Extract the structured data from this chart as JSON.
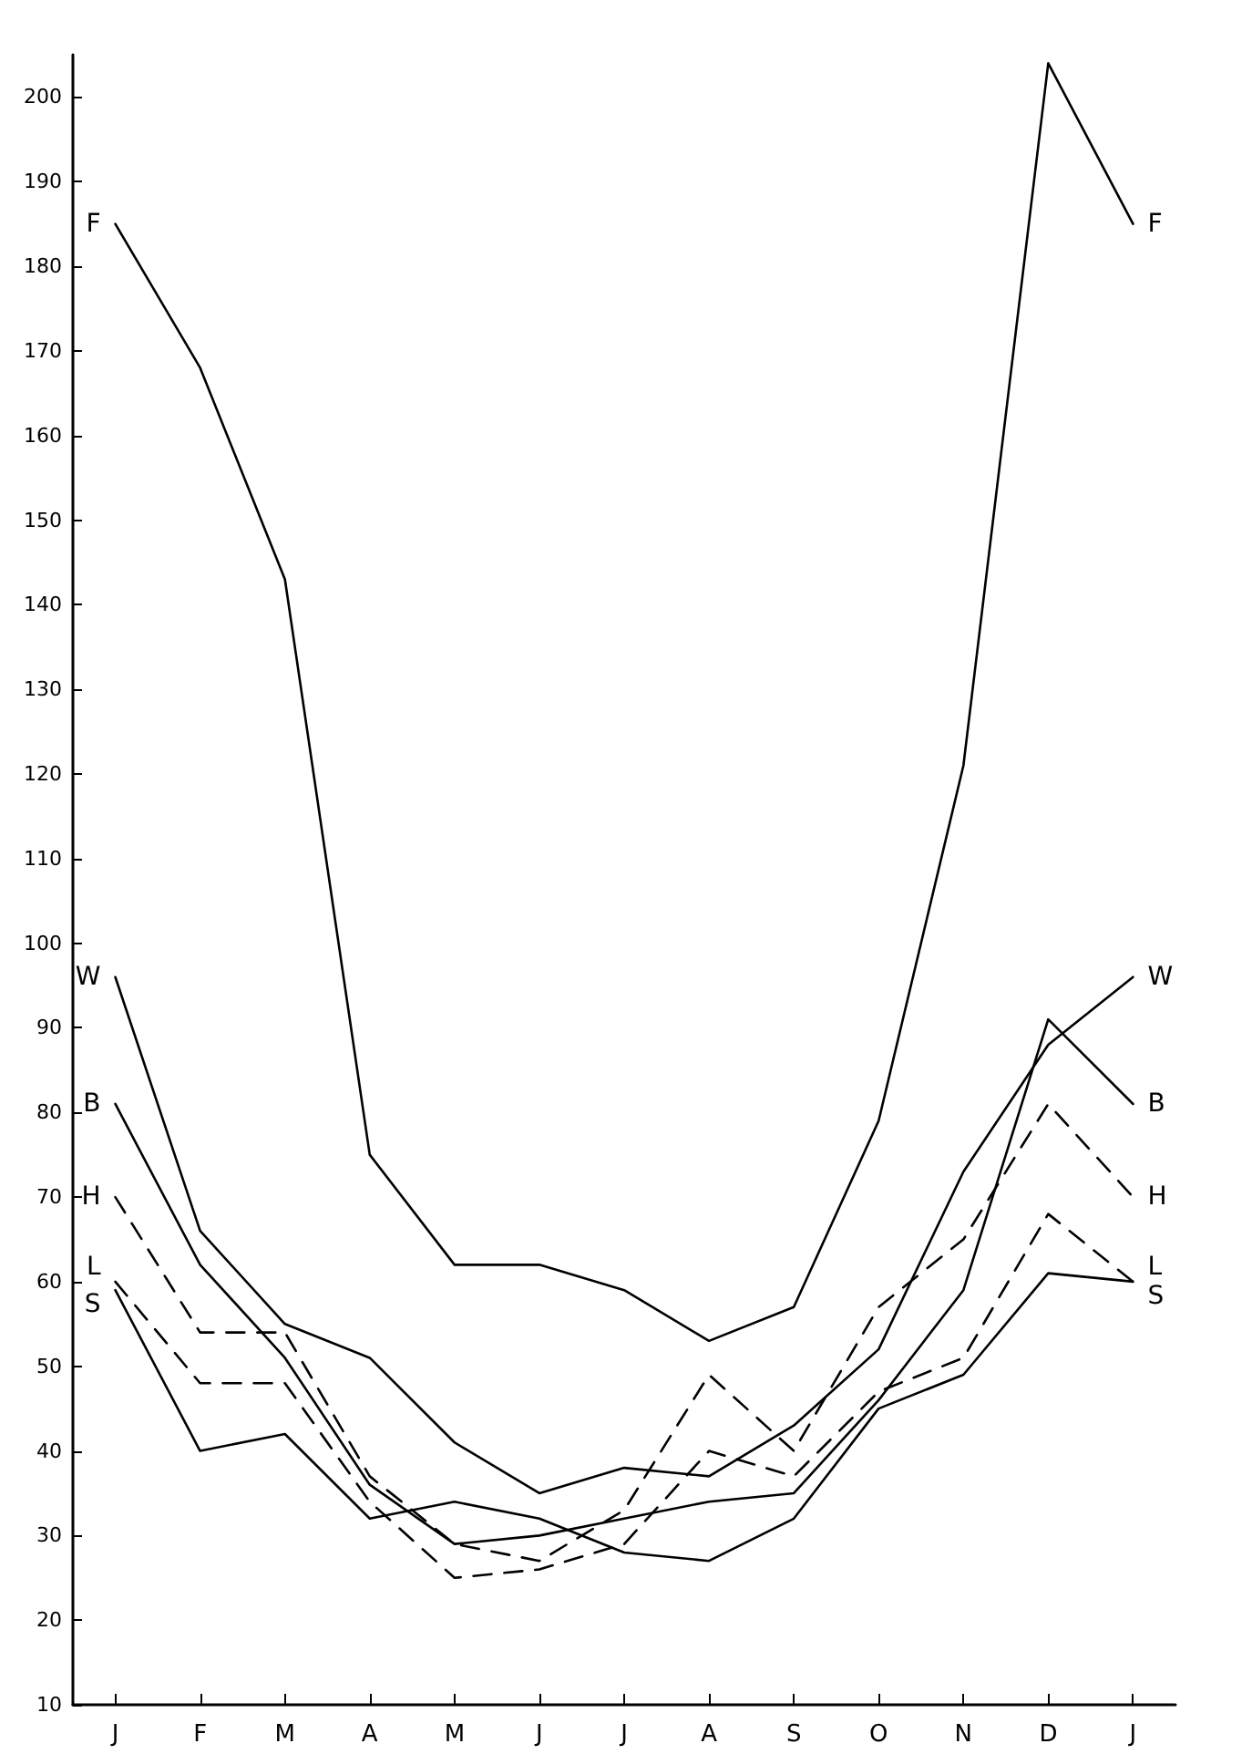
{
  "chart_data": {
    "type": "line",
    "categories": [
      "J",
      "F",
      "M",
      "A",
      "M",
      "J",
      "J",
      "A",
      "S",
      "O",
      "N",
      "D",
      "J"
    ],
    "series": [
      {
        "name": "F",
        "color": "#000000",
        "line_style": "solid",
        "values": [
          185,
          168,
          143,
          75,
          62,
          62,
          59,
          53,
          57,
          79,
          121,
          204,
          185
        ]
      },
      {
        "name": "W",
        "color": "#000000",
        "line_style": "solid",
        "values": [
          96,
          66,
          55,
          51,
          41,
          35,
          38,
          37,
          43,
          52,
          73,
          88,
          96
        ]
      },
      {
        "name": "B",
        "color": "#000000",
        "line_style": "solid",
        "values": [
          81,
          62,
          51,
          36,
          29,
          30,
          32,
          34,
          35,
          46,
          59,
          91,
          81
        ]
      },
      {
        "name": "H",
        "color": "#000000",
        "line_style": "dashed",
        "values": [
          70,
          54,
          54,
          37,
          29,
          27,
          33,
          49,
          40,
          57,
          65,
          81,
          70
        ]
      },
      {
        "name": "L",
        "color": "#000000",
        "line_style": "dashed",
        "values": [
          60,
          48,
          48,
          34,
          25,
          26,
          29,
          40,
          37,
          47,
          51,
          68,
          60
        ]
      },
      {
        "name": "S",
        "color": "#000000",
        "line_style": "solid",
        "values": [
          59,
          40,
          42,
          32,
          34,
          32,
          28,
          27,
          32,
          45,
          49,
          61,
          60
        ]
      }
    ],
    "ylim": [
      10,
      205
    ],
    "yticks": [
      10,
      20,
      30,
      40,
      50,
      60,
      70,
      80,
      90,
      100,
      110,
      120,
      130,
      140,
      150,
      160,
      170,
      180,
      190,
      200
    ],
    "grid": false,
    "legend": false,
    "marker": "none"
  }
}
